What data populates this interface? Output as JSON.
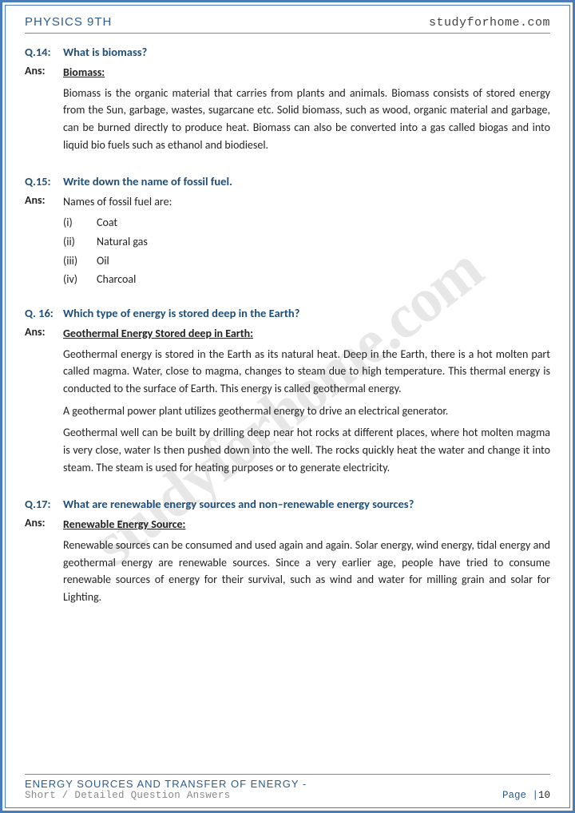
{
  "header": {
    "left": "PHYSICS 9TH",
    "right": "studyforhome.com"
  },
  "watermark": "studyforhome.com",
  "questions": [
    {
      "num": "Q.14:",
      "text": "What is biomass?",
      "ans_label": "Ans:",
      "heading": "Biomass:",
      "paras": [
        "Biomass is the organic material that carries from plants and animals. Biomass consists of stored energy from the Sun, garbage, wastes, sugarcane etc. Solid biomass, such as wood, organic material and garbage, can be burned directly to produce heat. Biomass can also be converted into a gas called biogas and into liquid bio fuels such as ethanol and biodiesel."
      ]
    },
    {
      "num": "Q.15:",
      "text": "Write down the name of fossil fuel.",
      "ans_label": "Ans:",
      "intro": "Names of fossil fuel are:",
      "list": [
        {
          "n": "(i)",
          "t": "Coat"
        },
        {
          "n": "(ii)",
          "t": "Natural gas"
        },
        {
          "n": "(iii)",
          "t": "Oil"
        },
        {
          "n": "(iv)",
          "t": "Charcoal"
        }
      ]
    },
    {
      "num": "Q. 16:",
      "text": "Which type of energy is stored deep in the Earth?",
      "ans_label": "Ans:",
      "heading": "Geothermal Energy Stored deep in Earth:",
      "paras": [
        "Geothermal energy is stored in the Earth as its natural heat. Deep in the Earth, there is a hot molten part called magma. Water, close to magma, changes to steam due to high temperature. This thermal energy is conducted to the surface of Earth. This energy is called geothermal energy.",
        "A geothermal power plant utilizes geothermal energy to drive an electrical generator.",
        "Geothermal well can be built by drilling deep near hot rocks at different places, where hot molten magma is very close, water Is then pushed down into the well. The rocks quickly heat the water and change it into steam. The steam is used for heating purposes or to generate electricity."
      ]
    },
    {
      "num": "Q.17:",
      "text": "What are renewable energy sources and non–renewable energy sources?",
      "ans_label": "Ans:",
      "heading": "Renewable Energy Source:",
      "paras": [
        "Renewable sources can be consumed and used again and again. Solar energy, wind energy, tidal energy and geothermal energy are renewable sources. Since a very earlier age, people have tried to consume renewable sources of energy for their survival, such as wind and water for milling grain and solar for Lighting."
      ]
    }
  ],
  "footer": {
    "title": "ENERGY SOURCES AND TRANSFER OF ENERGY -",
    "subtitle": "Short / Detailed Question Answers",
    "page_label": "Page |",
    "page_num": "10"
  }
}
